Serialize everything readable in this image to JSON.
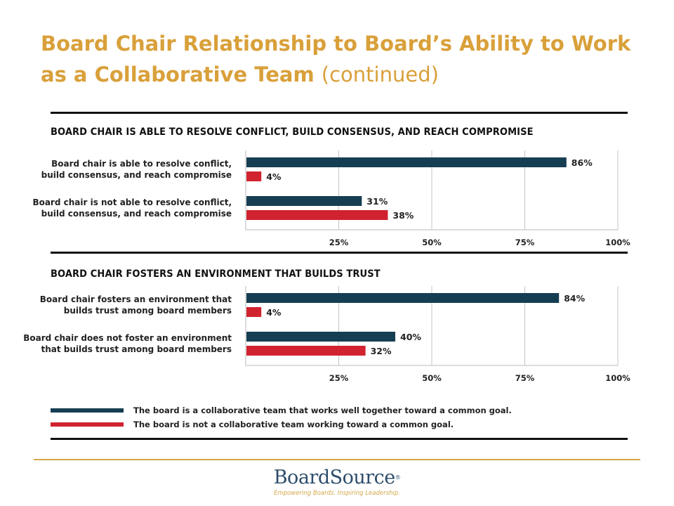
{
  "page": {
    "title_main": "Board Chair Relationship to Board’s Ability to Work as a Collaborative Team",
    "title_suffix": "(continued)"
  },
  "colors": {
    "series1": "#163e52",
    "series2": "#d1232f",
    "title": "#d9a03a",
    "rule": "#d4a748"
  },
  "legend": [
    {
      "label": "The board is a collaborative team that works well together toward a common goal.",
      "color": "#163e52"
    },
    {
      "label": "The board is not a collaborative team working toward a common goal.",
      "color": "#d1232f"
    }
  ],
  "chart_data": [
    {
      "type": "bar",
      "orientation": "horizontal",
      "title": "BOARD CHAIR IS ABLE TO RESOLVE CONFLICT, BUILD CONSENSUS, AND REACH COMPROMISE",
      "categories": [
        [
          "Board chair is able to resolve conflict,",
          "build consensus, and reach compromise"
        ],
        [
          "Board chair is not able to resolve conflict,",
          "build consensus, and reach compromise"
        ]
      ],
      "series": [
        {
          "name": "The board is a collaborative team that works well together toward a common goal.",
          "values": [
            86,
            31
          ]
        },
        {
          "name": "The board is not a collaborative team working toward a common goal.",
          "values": [
            4,
            38
          ]
        }
      ],
      "xlim": [
        0,
        100
      ],
      "xticks": [
        25,
        50,
        75,
        100
      ],
      "tick_labels": [
        "25%",
        "50%",
        "75%",
        "100%"
      ],
      "value_suffix": "%",
      "grid": true
    },
    {
      "type": "bar",
      "orientation": "horizontal",
      "title": "BOARD CHAIR FOSTERS AN ENVIRONMENT THAT BUILDS TRUST",
      "categories": [
        [
          "Board chair fosters an environment that",
          "builds trust among board members"
        ],
        [
          "Board chair does not foster an environment",
          "that builds trust among board members"
        ]
      ],
      "series": [
        {
          "name": "The board is a collaborative team that works well together toward a common goal.",
          "values": [
            84,
            40
          ]
        },
        {
          "name": "The board is not a collaborative team working toward a common goal.",
          "values": [
            4,
            32
          ]
        }
      ],
      "xlim": [
        0,
        100
      ],
      "xticks": [
        25,
        50,
        75,
        100
      ],
      "tick_labels": [
        "25%",
        "50%",
        "75%",
        "100%"
      ],
      "value_suffix": "%",
      "grid": true
    }
  ],
  "footer": {
    "logo_text": "BoardSource",
    "logo_mark": "®",
    "tagline": "Empowering Boards. Inspiring Leadership."
  }
}
